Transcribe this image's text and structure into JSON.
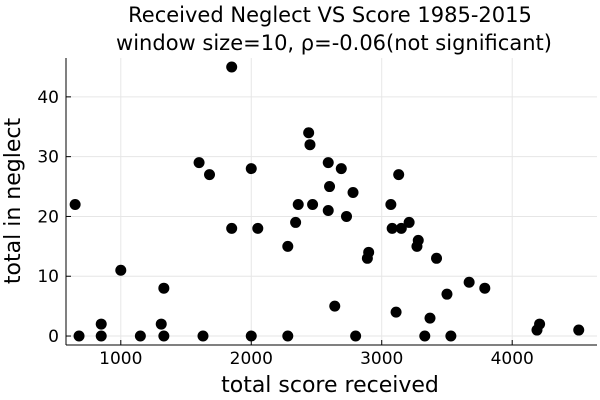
{
  "chart_data": {
    "type": "scatter",
    "title": "Received Neglect VS Score 1985-2015",
    "subtitle": "window size=10, ρ=-0.06(not significant)",
    "xlabel": "total score received",
    "ylabel": "total in neglect",
    "xlim": [
      580,
      4650
    ],
    "ylim": [
      -1.5,
      46.5
    ],
    "xticks": [
      1000,
      2000,
      3000,
      4000
    ],
    "yticks": [
      0,
      10,
      20,
      30,
      40
    ],
    "grid": true,
    "legend": "none",
    "marker_color": "#000000",
    "points": [
      {
        "x": 650,
        "y": 22
      },
      {
        "x": 680,
        "y": 0
      },
      {
        "x": 850,
        "y": 2
      },
      {
        "x": 850,
        "y": 0
      },
      {
        "x": 1000,
        "y": 11
      },
      {
        "x": 1150,
        "y": 0
      },
      {
        "x": 1310,
        "y": 2
      },
      {
        "x": 1330,
        "y": 8
      },
      {
        "x": 1330,
        "y": 0
      },
      {
        "x": 1600,
        "y": 29
      },
      {
        "x": 1630,
        "y": 0
      },
      {
        "x": 1680,
        "y": 27
      },
      {
        "x": 1850,
        "y": 45
      },
      {
        "x": 1850,
        "y": 18
      },
      {
        "x": 2000,
        "y": 28
      },
      {
        "x": 2000,
        "y": 0
      },
      {
        "x": 2050,
        "y": 18
      },
      {
        "x": 2280,
        "y": 15
      },
      {
        "x": 2280,
        "y": 0
      },
      {
        "x": 2340,
        "y": 19
      },
      {
        "x": 2360,
        "y": 22
      },
      {
        "x": 2440,
        "y": 34
      },
      {
        "x": 2450,
        "y": 32
      },
      {
        "x": 2470,
        "y": 22
      },
      {
        "x": 2590,
        "y": 29
      },
      {
        "x": 2600,
        "y": 25
      },
      {
        "x": 2590,
        "y": 21
      },
      {
        "x": 2640,
        "y": 5
      },
      {
        "x": 2690,
        "y": 28
      },
      {
        "x": 2730,
        "y": 20
      },
      {
        "x": 2780,
        "y": 24
      },
      {
        "x": 2800,
        "y": 0
      },
      {
        "x": 2890,
        "y": 13
      },
      {
        "x": 2900,
        "y": 14
      },
      {
        "x": 3070,
        "y": 22
      },
      {
        "x": 3080,
        "y": 18
      },
      {
        "x": 3110,
        "y": 4
      },
      {
        "x": 3130,
        "y": 27
      },
      {
        "x": 3150,
        "y": 18
      },
      {
        "x": 3210,
        "y": 19
      },
      {
        "x": 3270,
        "y": 15
      },
      {
        "x": 3280,
        "y": 16
      },
      {
        "x": 3330,
        "y": 0
      },
      {
        "x": 3370,
        "y": 3
      },
      {
        "x": 3420,
        "y": 13
      },
      {
        "x": 3500,
        "y": 7
      },
      {
        "x": 3530,
        "y": 0
      },
      {
        "x": 3670,
        "y": 9
      },
      {
        "x": 3790,
        "y": 8
      },
      {
        "x": 4190,
        "y": 1
      },
      {
        "x": 4210,
        "y": 2
      },
      {
        "x": 4510,
        "y": 1
      }
    ]
  }
}
